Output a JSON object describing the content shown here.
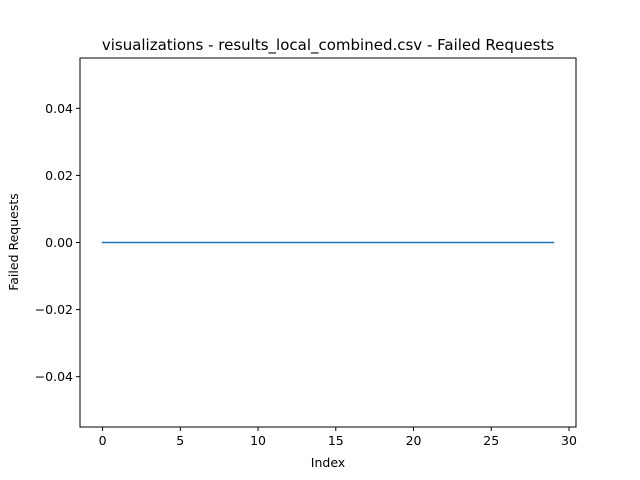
{
  "chart_data": {
    "type": "line",
    "title": "visualizations - results_local_combined.csv - Failed Requests",
    "xlabel": "Index",
    "ylabel": "Failed Requests",
    "xlim": [
      -1.45,
      30.45
    ],
    "ylim": [
      -0.055,
      0.055
    ],
    "x_ticks": [
      0,
      5,
      10,
      15,
      20,
      25,
      30
    ],
    "y_ticks": [
      -0.04,
      -0.02,
      0.0,
      0.02,
      0.04
    ],
    "x_tick_labels": [
      "0",
      "5",
      "10",
      "15",
      "20",
      "25",
      "30"
    ],
    "y_tick_labels": [
      "−0.04",
      "−0.02",
      "0.00",
      "0.02",
      "0.04"
    ],
    "grid": false,
    "series": [
      {
        "color": "#1f77b4",
        "x": [
          0,
          1,
          2,
          3,
          4,
          5,
          6,
          7,
          8,
          9,
          10,
          11,
          12,
          13,
          14,
          15,
          16,
          17,
          18,
          19,
          20,
          21,
          22,
          23,
          24,
          25,
          26,
          27,
          28,
          29
        ],
        "values": [
          0,
          0,
          0,
          0,
          0,
          0,
          0,
          0,
          0,
          0,
          0,
          0,
          0,
          0,
          0,
          0,
          0,
          0,
          0,
          0,
          0,
          0,
          0,
          0,
          0,
          0,
          0,
          0,
          0,
          0
        ]
      }
    ]
  }
}
